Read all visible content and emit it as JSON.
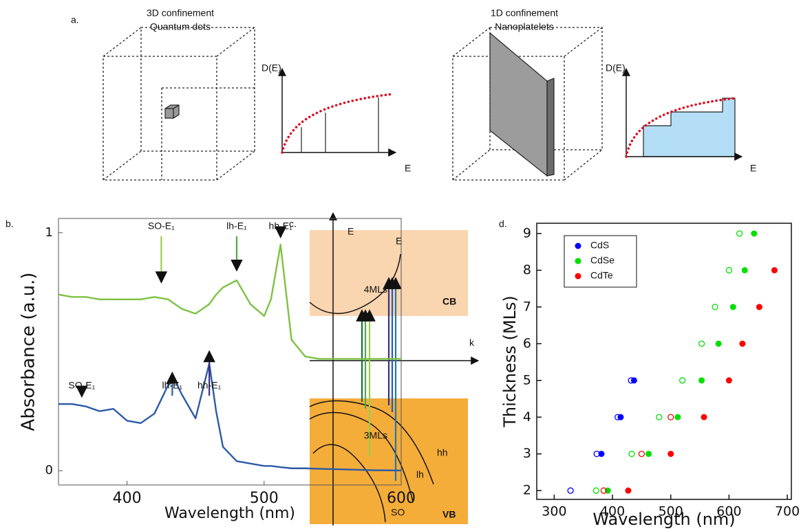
{
  "panel_labels": [
    "a.",
    "b.",
    "c.",
    "d."
  ],
  "panel_a": {
    "qd_title": "3D confinement",
    "qd_subtitle": "Quantum dots",
    "np_title": "1D confinement",
    "np_subtitle": "Nanoplatelets",
    "dos_labels": [
      "D(E)",
      "D(E)"
    ],
    "energy_labels": [
      "E",
      "E"
    ]
  },
  "panel_c": {
    "energy_axis": "E",
    "momentum_axis": "k",
    "conduction_band": "CB",
    "valence_band": "VB",
    "electron_band": "E",
    "hole_bands": [
      "hh",
      "lh",
      "SO"
    ]
  },
  "chart_data": [
    {
      "type": "line",
      "xlabel": "Wavelength (nm)",
      "ylabel": "Absorbance (a.u.)",
      "x": [
        350,
        360,
        370,
        380,
        390,
        400,
        410,
        420,
        430,
        435,
        440,
        450,
        460,
        465,
        470,
        480,
        490,
        500,
        505,
        512,
        520,
        530,
        540,
        560,
        580,
        600
      ],
      "series": [
        {
          "name": "4MLs",
          "color": "#7cc242",
          "values": [
            0.74,
            0.73,
            0.73,
            0.72,
            0.72,
            0.72,
            0.72,
            0.73,
            0.72,
            0.7,
            0.68,
            0.66,
            0.7,
            0.74,
            0.77,
            0.8,
            0.7,
            0.65,
            0.72,
            0.95,
            0.55,
            0.48,
            0.47,
            0.47,
            0.47,
            0.47
          ]
        },
        {
          "name": "3MLs",
          "color": "#2b5aa8",
          "values": [
            0.28,
            0.28,
            0.27,
            0.25,
            0.26,
            0.21,
            0.2,
            0.24,
            0.36,
            0.38,
            0.32,
            0.22,
            0.45,
            0.25,
            0.1,
            0.04,
            0.03,
            0.02,
            0.02,
            0.015,
            0.01,
            0.01,
            0.008,
            0.005,
            0.002,
            0.001
          ]
        }
      ],
      "annotations": [
        {
          "text": "SO-E₁",
          "x": 425,
          "y": 0.78,
          "color": "#9ccc4a"
        },
        {
          "text": "lh-E₁",
          "x": 480,
          "y": 0.83,
          "color": "#4fa845"
        },
        {
          "text": "hh-E₁",
          "x": 512,
          "y": 0.97,
          "color": "#1b6e3a"
        },
        {
          "text": "SO-E₁",
          "x": 367,
          "y": 0.3,
          "color": "#1f78b4"
        },
        {
          "text": "lh-E₁",
          "x": 433,
          "y": 0.4,
          "color": "#2b5aa8"
        },
        {
          "text": "hh-E₁",
          "x": 460,
          "y": 0.49,
          "color": "#3b2e80"
        }
      ],
      "xlim": [
        350,
        600
      ],
      "ylim": [
        -0.06,
        1.06
      ],
      "xticks": [
        400,
        500,
        600
      ],
      "yticks": [
        0,
        1
      ]
    },
    {
      "type": "scatter",
      "xlabel": "Wavelength (nm)",
      "ylabel": "Thickness (MLs)",
      "series": [
        {
          "name": "CdS",
          "color": "#0000ff",
          "x": [
            381,
            414,
            437
          ],
          "values": [
            3,
            4,
            5
          ],
          "open_x": [
            328,
            373,
            409,
            432
          ],
          "open_values": [
            2,
            3,
            4,
            5
          ]
        },
        {
          "name": "CdSe",
          "color": "#00e000",
          "x": [
            392,
            462,
            512,
            553,
            582,
            607,
            627,
            643
          ],
          "values": [
            2,
            3,
            4,
            5,
            6,
            7,
            8,
            9
          ],
          "open_x": [
            372,
            433,
            480,
            520,
            553,
            576,
            600,
            618
          ],
          "open_values": [
            2,
            3,
            4,
            5,
            6,
            7,
            8,
            9
          ]
        },
        {
          "name": "CdTe",
          "color": "#ff0000",
          "x": [
            427,
            500,
            557,
            600,
            623,
            652,
            678
          ],
          "values": [
            2,
            3,
            4,
            5,
            6,
            7,
            8
          ],
          "open_x": [
            385,
            450,
            500
          ],
          "open_values": [
            2,
            3,
            4
          ]
        }
      ],
      "xlim": [
        270,
        707
      ],
      "ylim": [
        1.76,
        9.28
      ],
      "xticks": [
        300,
        400,
        500,
        600,
        700
      ],
      "yticks": [
        2,
        3,
        4,
        5,
        6,
        7,
        8,
        9
      ],
      "legend": "upper left"
    }
  ]
}
